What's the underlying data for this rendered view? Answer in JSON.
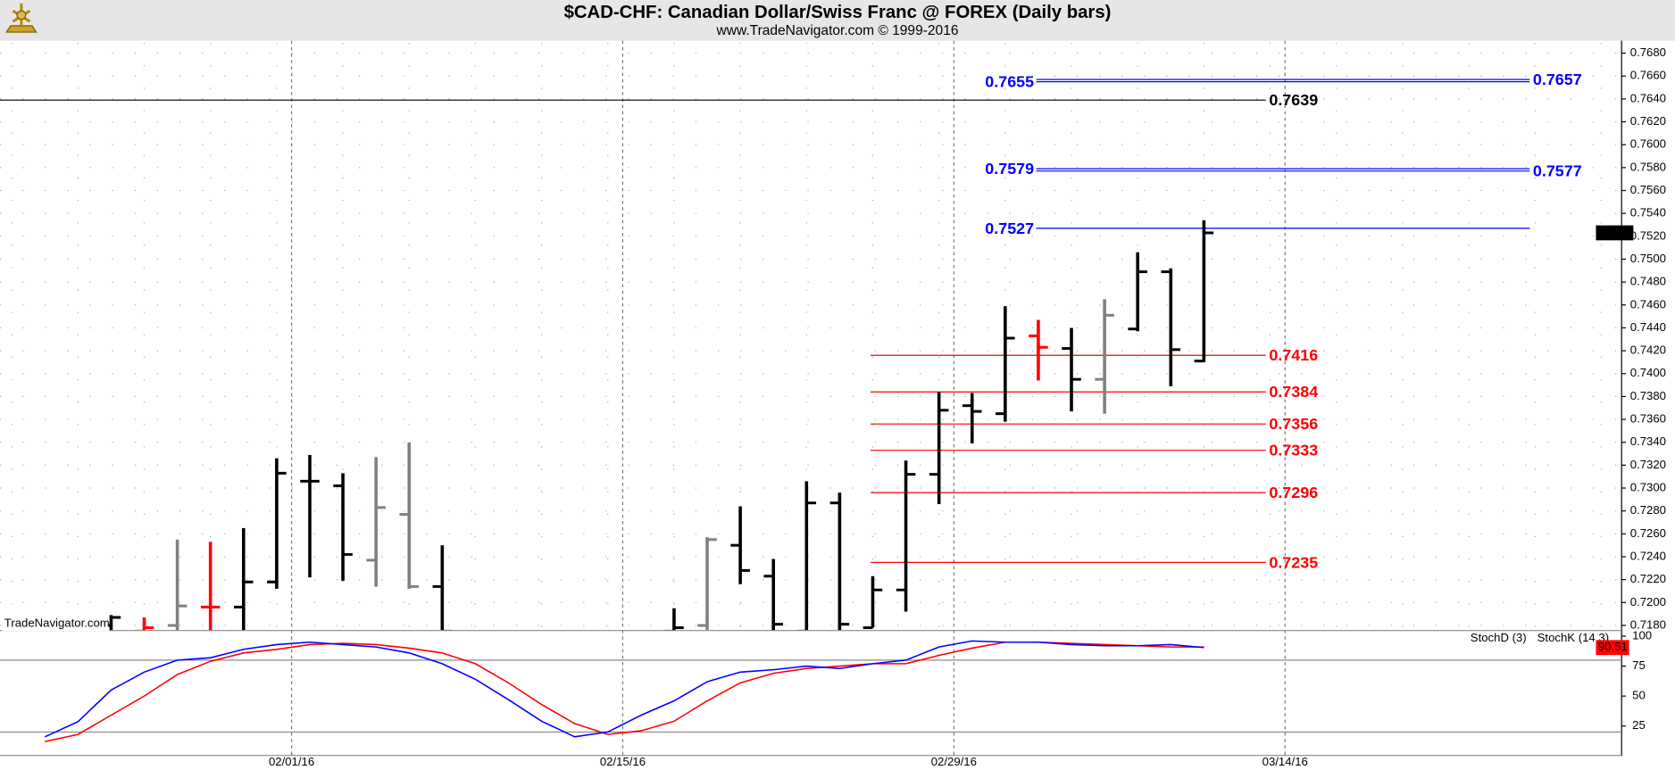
{
  "chart_data": [
    {
      "type": "ohlc",
      "title": "$CAD-CHF:  Canadian Dollar/Swiss Franc @ FOREX  (Daily bars)",
      "subtitle": "www.TradeNavigator.com © 1999-2016",
      "watermark": "TradeNavigator.com",
      "categories": [
        null,
        null,
        null,
        null,
        null,
        null,
        null,
        null,
        null,
        null,
        null,
        null,
        null,
        null,
        null,
        null,
        null,
        null,
        null,
        null,
        null,
        null,
        null,
        null,
        null,
        null,
        null,
        null,
        null,
        null,
        null,
        null,
        null,
        null,
        null,
        null
      ],
      "date_labels": [
        "02/01/16",
        "02/15/16",
        "02/29/16",
        "03/14/16"
      ],
      "open": [
        null,
        null,
        0.718,
        0.7175,
        0.718,
        0.7196,
        0.7196,
        0.7218,
        0.7306,
        0.7302,
        0.7237,
        0.7277,
        0.7214,
        null,
        null,
        null,
        null,
        null,
        null,
        0.7175,
        0.718,
        0.725,
        0.7223,
        0.7175,
        0.7287,
        0.7178,
        0.7211,
        0.7312,
        0.7372,
        0.7365,
        0.7433,
        0.7422,
        0.7395,
        0.7439,
        0.7489,
        0.7411
      ],
      "high": [
        null,
        null,
        0.7189,
        0.7187,
        0.7255,
        0.7253,
        0.7265,
        0.7326,
        0.7329,
        0.7313,
        0.7327,
        0.734,
        0.725,
        null,
        null,
        null,
        null,
        null,
        null,
        0.7195,
        0.7257,
        0.7284,
        0.7238,
        0.7306,
        0.7296,
        0.7223,
        0.7324,
        0.7384,
        0.7383,
        0.7459,
        0.7447,
        0.744,
        0.7465,
        0.7506,
        0.7492,
        0.7534
      ],
      "low": [
        null,
        null,
        0.717,
        0.717,
        0.717,
        0.717,
        0.717,
        0.7212,
        0.7222,
        0.7219,
        0.7214,
        0.7212,
        0.717,
        null,
        null,
        null,
        null,
        null,
        null,
        0.717,
        0.717,
        0.7216,
        0.717,
        0.717,
        0.717,
        0.7178,
        0.7192,
        0.7286,
        0.7339,
        0.7358,
        0.7394,
        0.7367,
        0.7365,
        0.7437,
        0.7389,
        0.741
      ],
      "close": [
        null,
        null,
        0.7187,
        0.7178,
        0.7197,
        0.7196,
        0.7218,
        0.7313,
        0.7306,
        0.7242,
        0.7283,
        0.7214,
        0.7175,
        null,
        null,
        null,
        null,
        null,
        null,
        0.7178,
        0.7255,
        0.7228,
        0.7181,
        0.7287,
        0.7181,
        0.7211,
        0.7312,
        0.7368,
        0.7367,
        0.7431,
        0.7423,
        0.7395,
        0.7451,
        0.7489,
        0.7421,
        0.7523
      ],
      "bar_colors": [
        null,
        null,
        "#000000",
        "#ff0000",
        "#808080",
        "#ff0000",
        "#000000",
        "#000000",
        "#000000",
        "#000000",
        "#808080",
        "#808080",
        "#000000",
        null,
        null,
        null,
        null,
        null,
        null,
        "#000000",
        "#808080",
        "#000000",
        "#000000",
        "#000000",
        "#000000",
        "#000000",
        "#000000",
        "#000000",
        "#000000",
        "#000000",
        "#ff0000",
        "#000000",
        "#808080",
        "#000000",
        "#000000",
        "#000000"
      ],
      "levels": [
        {
          "value": 0.7655,
          "color": "#0000ff",
          "label_side": "left"
        },
        {
          "value": 0.7657,
          "color": "#0000ff",
          "label_side": "right"
        },
        {
          "value": 0.7579,
          "color": "#0000ff",
          "label_side": "left"
        },
        {
          "value": 0.7577,
          "color": "#0000ff",
          "label_side": "right"
        },
        {
          "value": 0.7527,
          "color": "#0000ff",
          "label_side": "left"
        },
        {
          "value": 0.7639,
          "color": "#000000",
          "label_side": "right"
        },
        {
          "value": 0.7416,
          "color": "#ff0000",
          "label_side": "right"
        },
        {
          "value": 0.7384,
          "color": "#ff0000",
          "label_side": "right"
        },
        {
          "value": 0.7356,
          "color": "#ff0000",
          "label_side": "right"
        },
        {
          "value": 0.7333,
          "color": "#ff0000",
          "label_side": "right"
        },
        {
          "value": 0.7296,
          "color": "#ff0000",
          "label_side": "right"
        },
        {
          "value": 0.7235,
          "color": "#ff0000",
          "label_side": "right"
        }
      ],
      "ylim": [
        0.7176,
        0.7689
      ],
      "yticks": [
        {
          "value": 0.718,
          "label": "0.7180"
        },
        {
          "value": 0.72,
          "label": "0.7200"
        },
        {
          "value": 0.722,
          "label": "0.7220"
        },
        {
          "value": 0.724,
          "label": "0.7240"
        },
        {
          "value": 0.726,
          "label": "0.7260"
        },
        {
          "value": 0.728,
          "label": "0.7280"
        },
        {
          "value": 0.73,
          "label": "0.7300"
        },
        {
          "value": 0.732,
          "label": "0.7320"
        },
        {
          "value": 0.734,
          "label": "0.7340"
        },
        {
          "value": 0.736,
          "label": "0.7360"
        },
        {
          "value": 0.738,
          "label": "0.7380"
        },
        {
          "value": 0.74,
          "label": "0.7400"
        },
        {
          "value": 0.742,
          "label": "0.7420"
        },
        {
          "value": 0.744,
          "label": "0.7440"
        },
        {
          "value": 0.746,
          "label": "0.7460"
        },
        {
          "value": 0.748,
          "label": "0.7480"
        },
        {
          "value": 0.75,
          "label": "0.7500"
        },
        {
          "value": 0.752,
          "label": "0.7520"
        },
        {
          "value": 0.754,
          "label": "0.7540"
        },
        {
          "value": 0.756,
          "label": "0.7560"
        },
        {
          "value": 0.758,
          "label": "0.7580"
        },
        {
          "value": 0.76,
          "label": "0.7600"
        },
        {
          "value": 0.762,
          "label": "0.7620"
        },
        {
          "value": 0.764,
          "label": "0.7640"
        },
        {
          "value": 0.766,
          "label": "0.7660"
        },
        {
          "value": 0.768,
          "label": "0.7680"
        }
      ],
      "grid": true
    },
    {
      "type": "line",
      "series": [
        {
          "name": "StochD (3)",
          "color": "#ff0000",
          "values": [
            12,
            18,
            34,
            50,
            68,
            79,
            86,
            89,
            93,
            94,
            93,
            90,
            86,
            77,
            61,
            43,
            27,
            18,
            21,
            29,
            46,
            61,
            69,
            73,
            75,
            77,
            77,
            84,
            90,
            95,
            95,
            94,
            93,
            92,
            91,
            91
          ]
        },
        {
          "name": "StochK (14,3)",
          "color": "#0000ff",
          "values": [
            16,
            28.6,
            55,
            70,
            80,
            82,
            89,
            93,
            95,
            93,
            91,
            86,
            77,
            64,
            47,
            29,
            16,
            20,
            34,
            46,
            62,
            70,
            72,
            75,
            73,
            77,
            80,
            91,
            96,
            95,
            95,
            93,
            92,
            92,
            93,
            90.51
          ]
        }
      ],
      "ylim": [
        0,
        102.5
      ],
      "yticks": [
        25,
        50,
        75,
        100
      ],
      "hlines": [
        80,
        20
      ]
    }
  ]
}
